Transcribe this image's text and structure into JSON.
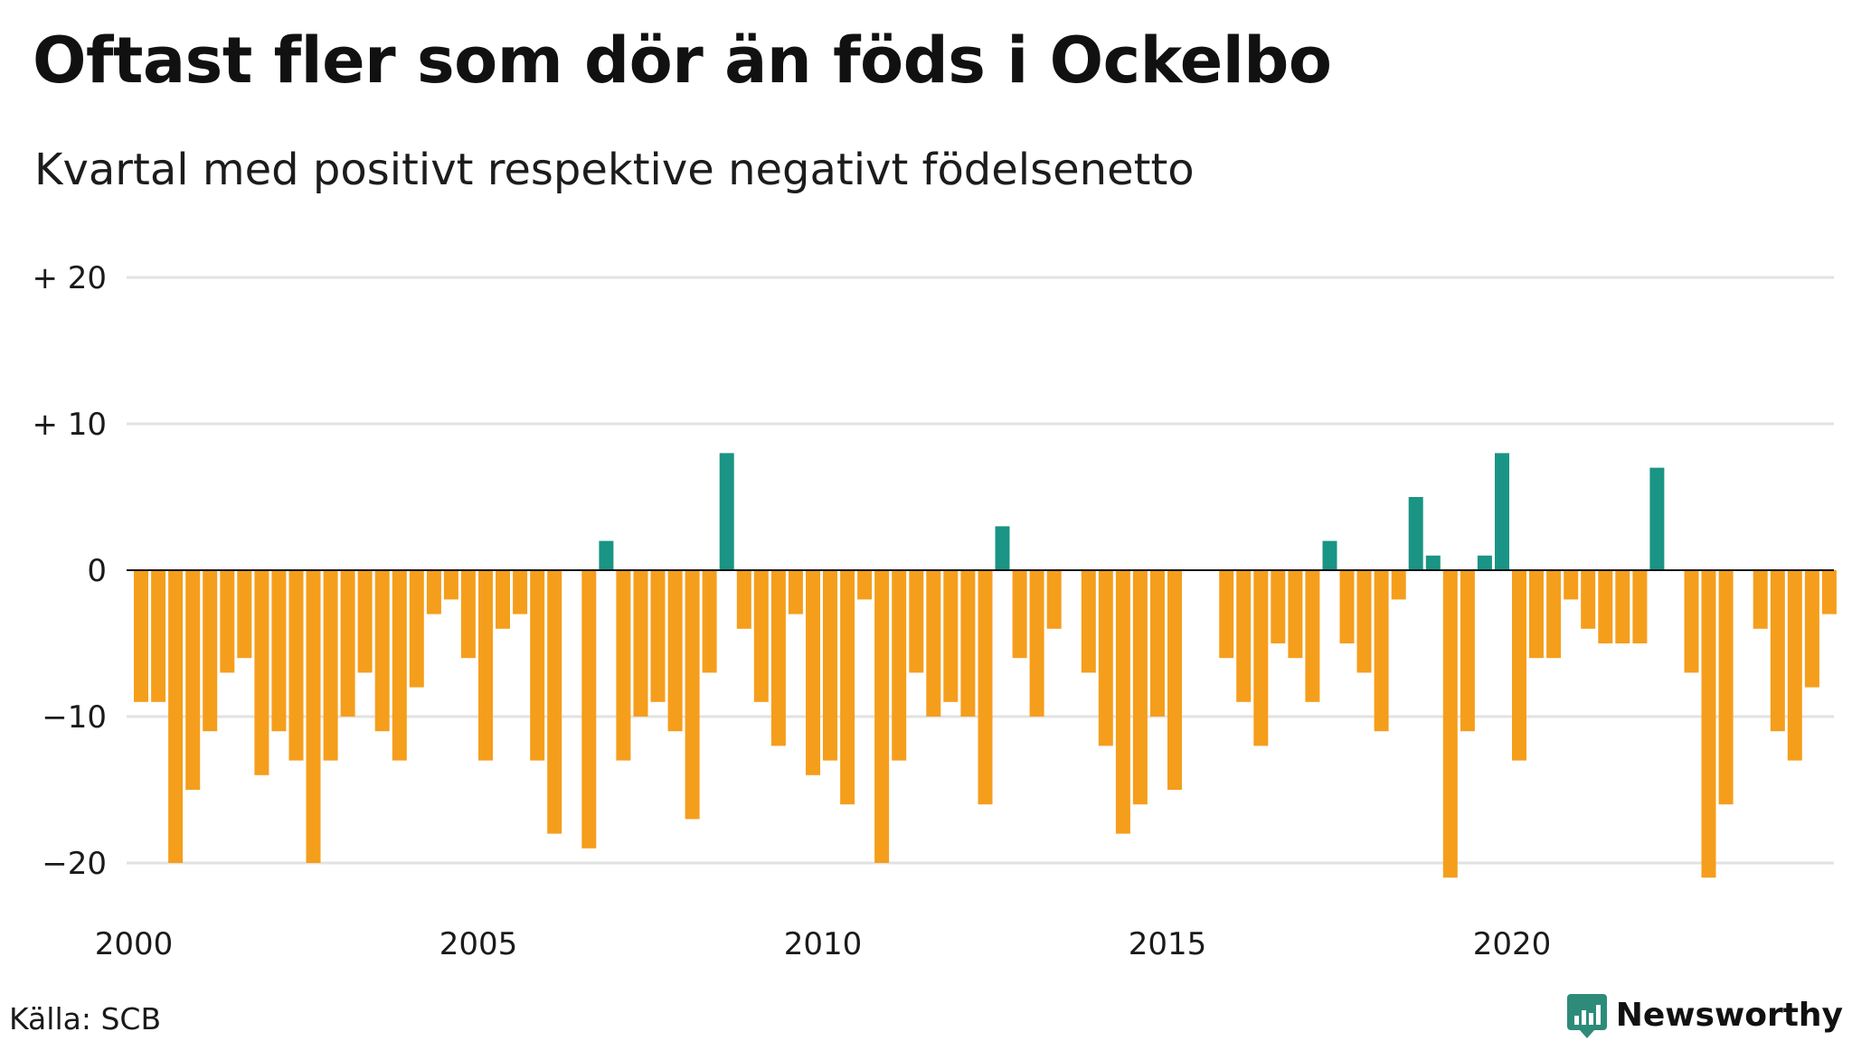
{
  "title": "Oftast fler som dör än föds i Ockelbo",
  "subtitle": "Kvartal med positivt respektive negativt födelsenetto",
  "source": "Källa: SCB",
  "brand": {
    "name": "Newsworthy",
    "color": "#2e8b7a"
  },
  "colors": {
    "positive": "#1a9484",
    "negative": "#f59e1c",
    "grid": "#e2e2e2",
    "zero_line": "#111111"
  },
  "chart_data": {
    "type": "bar",
    "title": "Oftast fler som dör än föds i Ockelbo",
    "subtitle": "Kvartal med positivt respektive negativt födelsenetto",
    "xlabel": "",
    "ylabel": "",
    "x_start": 2000,
    "periods_per_year": 4,
    "xlim": [
      2000,
      2024.75
    ],
    "ylim": [
      -21,
      20
    ],
    "y_ticks": [
      20,
      10,
      0,
      -10,
      -20
    ],
    "y_tick_labels": [
      "+ 20",
      "+ 10",
      "0",
      "−10",
      "−20"
    ],
    "x_ticks": [
      2000,
      2005,
      2010,
      2015,
      2020
    ],
    "x_tick_labels": [
      "2000",
      "2005",
      "2010",
      "2015",
      "2020"
    ],
    "grid": true,
    "legend": false,
    "values": [
      -9,
      -9,
      -20,
      -15,
      -11,
      -7,
      -6,
      -14,
      -11,
      -13,
      -20,
      -13,
      -10,
      -7,
      -11,
      -13,
      -8,
      -3,
      -2,
      -6,
      -13,
      -4,
      -3,
      -13,
      -18,
      0,
      -19,
      2,
      -13,
      -10,
      -9,
      -11,
      -17,
      -7,
      8,
      -4,
      -9,
      -12,
      -3,
      -14,
      -13,
      -16,
      -2,
      -20,
      -13,
      -7,
      -10,
      -9,
      -10,
      -16,
      3,
      -6,
      -10,
      -4,
      0,
      -7,
      -12,
      -18,
      -16,
      -10,
      -15,
      0,
      0,
      -6,
      -9,
      -12,
      -5,
      -6,
      -9,
      2,
      -5,
      -7,
      -11,
      -2,
      5,
      1,
      -21,
      -11,
      1,
      8,
      -13,
      -6,
      -6,
      -2,
      -4,
      -5,
      -5,
      -5,
      7,
      0,
      -7,
      -21,
      -16,
      0,
      -4,
      -11,
      -13,
      -8,
      -3
    ]
  }
}
